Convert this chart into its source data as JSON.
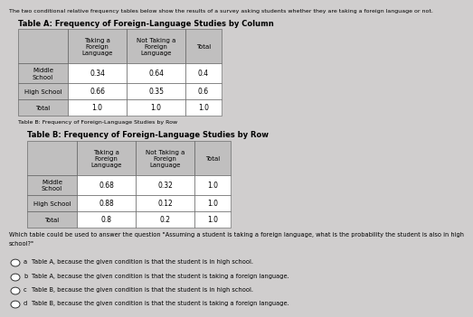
{
  "intro_text": "The two conditional relative frequency tables below show the results of a survey asking students whether they are taking a foreign language or not.",
  "table_a_title": "Table A: Frequency of Foreign-Language Studies by Column",
  "table_b_label_small": "Table B: Frequency of Foreign-Language Studies by Row",
  "table_b_title": "Table B: Frequency of Foreign-Language Studies by Row",
  "col_headers": [
    "Taking a\nForeign\nLanguage",
    "Not Taking a\nForeign\nLanguage",
    "Total"
  ],
  "row_headers_a": [
    "Middle\nSchool",
    "High School",
    "Total"
  ],
  "table_a_data": [
    [
      "0.34",
      "0.64",
      "0.4"
    ],
    [
      "0.66",
      "0.35",
      "0.6"
    ],
    [
      "1.0",
      "1.0",
      "1.0"
    ]
  ],
  "row_headers_b": [
    "Middle\nSchool",
    "High School",
    "Total"
  ],
  "table_b_data": [
    [
      "0.68",
      "0.32",
      "1.0"
    ],
    [
      "0.88",
      "0.12",
      "1.0"
    ],
    [
      "0.8",
      "0.2",
      "1.0"
    ]
  ],
  "question_line1": "Which table could be used to answer the question \"Assuming a student is taking a foreign language, what is the probability the student is also in high",
  "question_line2": "school?\"",
  "choices": [
    [
      "a",
      "Table A, because the given condition is that the student is in high school."
    ],
    [
      "b",
      "Table A, because the given condition is that the student is taking a foreign language."
    ],
    [
      "c",
      "Table B, because the given condition is that the student is in high school."
    ],
    [
      "d",
      "Table B, because the given condition is that the student is taking a foreign language."
    ]
  ],
  "bg_color": "#d0cece",
  "table_bg": "#ffffff",
  "header_bg": "#c0bfbf",
  "border_color": "#555555"
}
